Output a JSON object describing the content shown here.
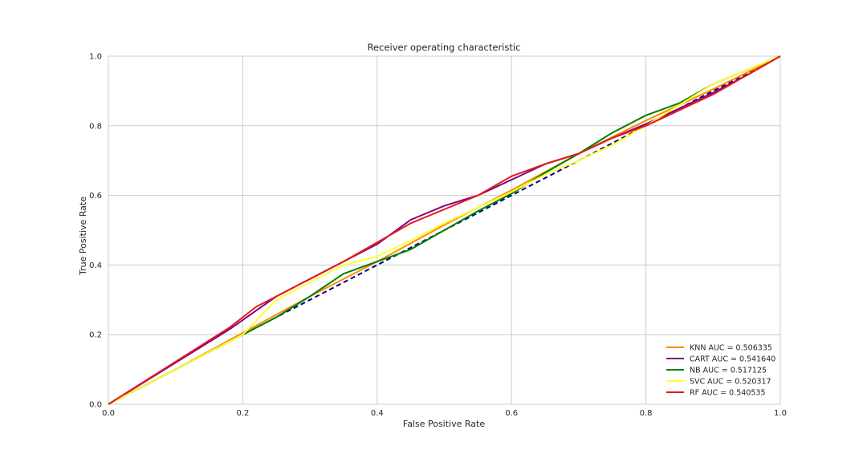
{
  "chart_data": {
    "type": "line",
    "title": "Receiver operating characteristic",
    "xlabel": "False Positive Rate",
    "ylabel": "True Positive Rate",
    "xlim": [
      0,
      1
    ],
    "ylim": [
      0,
      1
    ],
    "x_ticks": [
      "0.0",
      "0.2",
      "0.4",
      "0.6",
      "0.8",
      "1.0"
    ],
    "y_ticks": [
      "0.0",
      "0.2",
      "0.4",
      "0.6",
      "0.8",
      "1.0"
    ],
    "grid": true,
    "legend_position": "lower-right",
    "diagonal": {
      "x": [
        0,
        1
      ],
      "y": [
        0,
        1
      ],
      "color": "#000080",
      "style": "dashed"
    },
    "series": [
      {
        "name": "KNN AUC = 0.506335",
        "color": "#ff8c00",
        "x": [
          0,
          0.1,
          0.2,
          0.3,
          0.4,
          0.5,
          0.6,
          0.7,
          0.8,
          0.9,
          1.0
        ],
        "y": [
          0,
          0.1,
          0.205,
          0.31,
          0.41,
          0.515,
          0.615,
          0.72,
          0.815,
          0.905,
          1.0
        ]
      },
      {
        "name": "CART AUC = 0.541640",
        "color": "#800080",
        "x": [
          0,
          0.18,
          0.25,
          0.3,
          0.35,
          0.4,
          0.45,
          0.5,
          0.55,
          0.6,
          0.65,
          0.7,
          0.75,
          0.8,
          0.85,
          0.9,
          0.95,
          1.0
        ],
        "y": [
          0,
          0.215,
          0.31,
          0.36,
          0.41,
          0.46,
          0.53,
          0.57,
          0.6,
          0.645,
          0.69,
          0.72,
          0.765,
          0.805,
          0.85,
          0.895,
          0.945,
          1.0
        ]
      },
      {
        "name": "NB AUC = 0.517125",
        "color": "#008000",
        "x": [
          0,
          0.1,
          0.2,
          0.25,
          0.3,
          0.35,
          0.4,
          0.45,
          0.5,
          0.55,
          0.6,
          0.65,
          0.7,
          0.75,
          0.8,
          0.85,
          0.9,
          0.95,
          1.0
        ],
        "y": [
          0,
          0.1,
          0.2,
          0.25,
          0.31,
          0.375,
          0.41,
          0.445,
          0.5,
          0.555,
          0.605,
          0.665,
          0.72,
          0.78,
          0.83,
          0.865,
          0.92,
          0.96,
          1.0
        ]
      },
      {
        "name": "SVC AUC = 0.520317",
        "color": "#ffff33",
        "x": [
          0,
          0.1,
          0.2,
          0.25,
          0.3,
          0.35,
          0.4,
          0.45,
          0.5,
          0.55,
          0.6,
          0.65,
          0.7,
          0.75,
          0.8,
          0.85,
          0.9,
          0.95,
          1.0
        ],
        "y": [
          0,
          0.1,
          0.2,
          0.3,
          0.35,
          0.4,
          0.425,
          0.47,
          0.52,
          0.565,
          0.61,
          0.66,
          0.7,
          0.745,
          0.8,
          0.86,
          0.92,
          0.96,
          1.0
        ]
      },
      {
        "name": "RF AUC = 0.540535",
        "color": "#e41a1c",
        "x": [
          0,
          0.18,
          0.22,
          0.25,
          0.3,
          0.35,
          0.4,
          0.45,
          0.5,
          0.55,
          0.6,
          0.65,
          0.7,
          0.75,
          0.8,
          0.85,
          0.9,
          0.95,
          1.0
        ],
        "y": [
          0,
          0.22,
          0.28,
          0.31,
          0.36,
          0.41,
          0.465,
          0.52,
          0.56,
          0.6,
          0.655,
          0.69,
          0.72,
          0.765,
          0.8,
          0.845,
          0.89,
          0.945,
          1.0
        ]
      }
    ]
  }
}
